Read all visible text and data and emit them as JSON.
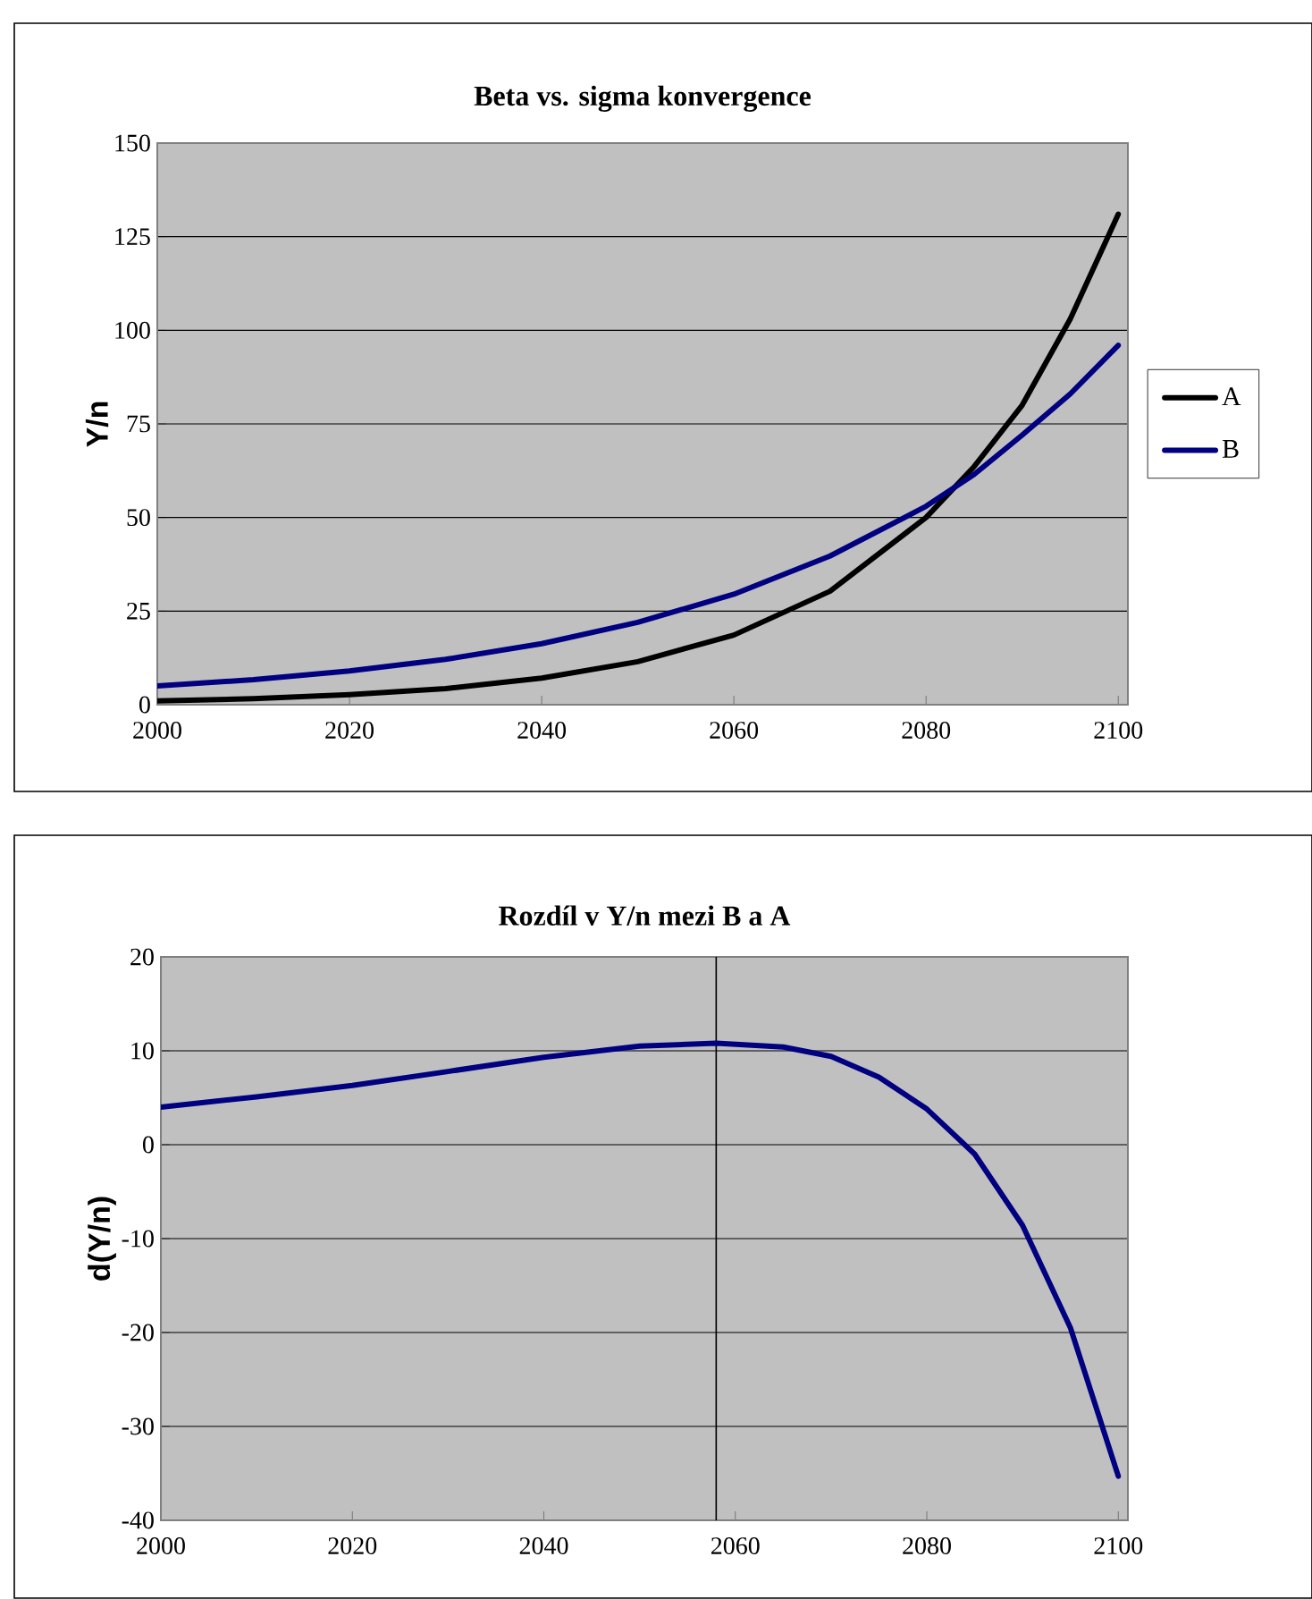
{
  "chart_data": [
    {
      "type": "line",
      "title": "Beta vs. sigma konvergence",
      "ylabel": "Y/n",
      "x": [
        2000,
        2010,
        2020,
        2030,
        2040,
        2050,
        2060,
        2070,
        2080,
        2085,
        2090,
        2095,
        2100
      ],
      "series": [
        {
          "name": "A",
          "color": "#000000",
          "values": [
            1,
            1.6,
            2.7,
            4.3,
            7.1,
            11.5,
            18.6,
            30.3,
            50,
            63.6,
            80,
            103,
            131
          ]
        },
        {
          "name": "B",
          "color": "#000080",
          "values": [
            5,
            6.7,
            9,
            12.1,
            16.3,
            22,
            29.5,
            39.7,
            53,
            61.5,
            72,
            83,
            96
          ]
        }
      ],
      "xlim": [
        2000,
        2101
      ],
      "ylim": [
        0,
        150
      ],
      "xticks": [
        2000,
        2020,
        2040,
        2060,
        2080,
        2100
      ],
      "yticks": [
        0,
        25,
        50,
        75,
        100,
        125,
        150
      ],
      "grid": "y",
      "legend": "right",
      "marker": "none",
      "line_style": "solid"
    },
    {
      "type": "line",
      "title": "Rozdíl v Y/n mezi B a A",
      "ylabel": "d(Y/n)",
      "x": [
        2000,
        2010,
        2020,
        2030,
        2040,
        2050,
        2058,
        2065,
        2070,
        2075,
        2080,
        2085,
        2090,
        2095,
        2100
      ],
      "series": [
        {
          "color": "#000080",
          "values": [
            4,
            5.1,
            6.3,
            7.8,
            9.3,
            10.5,
            10.8,
            10.4,
            9.4,
            7.2,
            3.8,
            -1,
            -8.6,
            -19.5,
            -35.3
          ]
        }
      ],
      "xlim": [
        2000,
        2101
      ],
      "ylim": [
        -40,
        20
      ],
      "xticks": [
        2000,
        2020,
        2040,
        2060,
        2080,
        2100
      ],
      "yticks": [
        -40,
        -30,
        -20,
        -10,
        0,
        10,
        20
      ],
      "grid": "y",
      "legend": false,
      "marker": "none",
      "line_style": "solid",
      "ref_lines": [
        {
          "axis": "x",
          "value": 2058,
          "color": "#000000"
        }
      ]
    }
  ]
}
